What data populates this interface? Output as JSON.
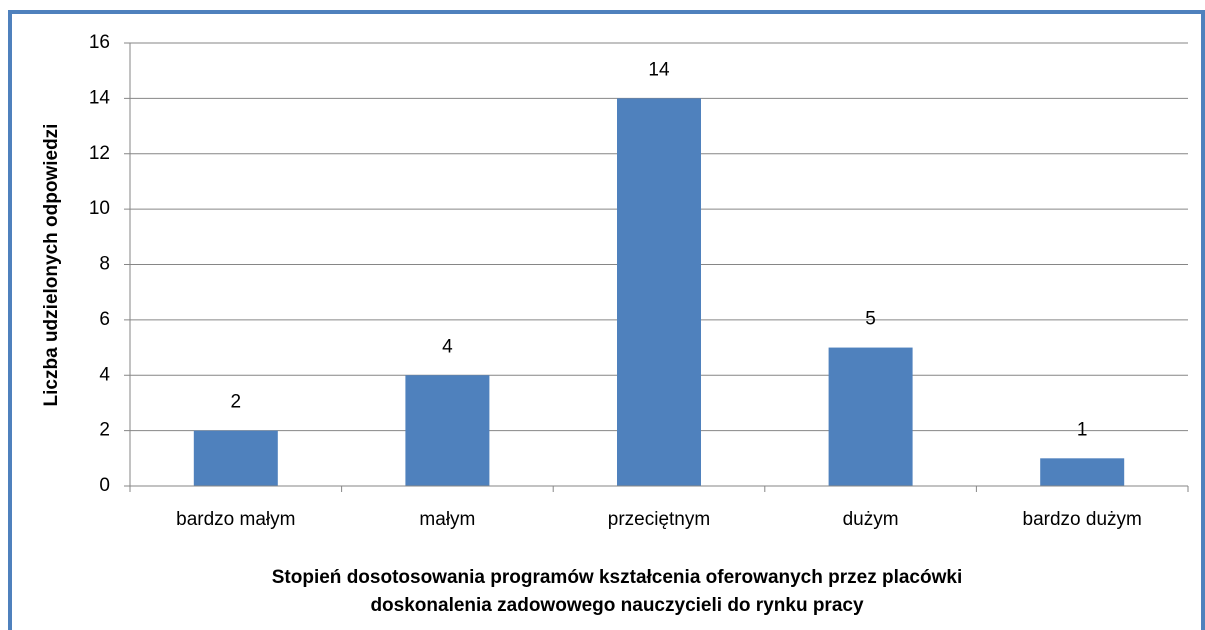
{
  "chart_data": {
    "type": "bar",
    "categories": [
      "bardzo małym",
      "małym",
      "przeciętnym",
      "dużym",
      "bardzo dużym"
    ],
    "values": [
      2,
      4,
      14,
      5,
      1
    ],
    "color": "#4f81bd",
    "ylim": [
      0,
      16
    ],
    "yticks": [
      0,
      2,
      4,
      6,
      8,
      10,
      12,
      14,
      16
    ],
    "grid": true,
    "ylabel": "Liczba udzielonych odpowiedzi",
    "xlabel": [
      "Stopień dosotosowania programów kształcenia oferowanych przez placówki",
      "doskonalenia zadowowego nauczycieli do rynku pracy"
    ]
  }
}
